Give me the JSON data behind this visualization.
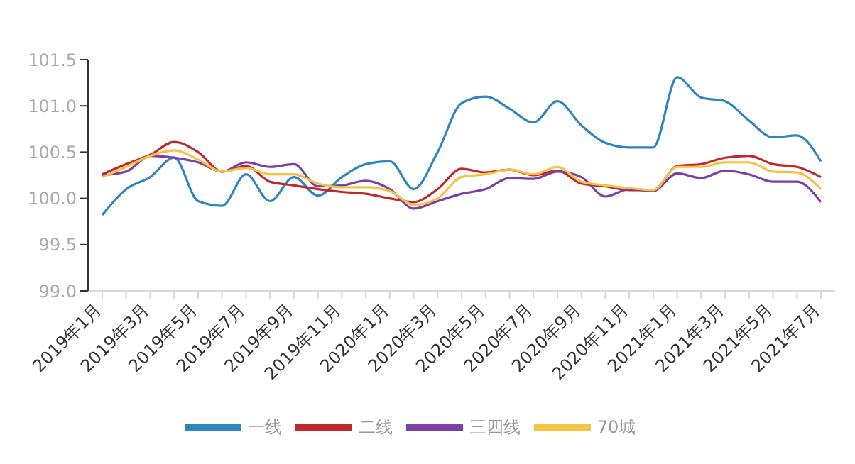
{
  "chart_data": {
    "type": "line",
    "categories": [
      "2019年1月",
      null,
      "2019年3月",
      null,
      "2019年5月",
      null,
      "2019年7月",
      null,
      "2019年9月",
      null,
      "2019年11月",
      null,
      "2020年1月",
      null,
      "2020年3月",
      null,
      "2020年5月",
      null,
      "2020年7月",
      null,
      "2020年9月",
      null,
      "2020年11月",
      null,
      "2021年1月",
      null,
      "2021年3月",
      null,
      "2021年5月",
      null,
      "2021年7月"
    ],
    "series": [
      {
        "name": "一线",
        "color": "#2e86c1",
        "values": [
          99.82,
          100.1,
          100.23,
          100.44,
          99.97,
          99.92,
          100.26,
          99.97,
          100.23,
          100.03,
          100.23,
          100.37,
          100.4,
          100.1,
          100.5,
          101.03,
          101.1,
          100.97,
          100.82,
          101.05,
          100.79,
          100.6,
          100.55,
          100.55,
          101.31,
          101.09,
          101.05,
          100.84,
          100.66,
          100.68,
          100.4
        ]
      },
      {
        "name": "二线",
        "color": "#c0282d",
        "values": [
          100.26,
          100.37,
          100.47,
          100.61,
          100.5,
          100.29,
          100.35,
          100.18,
          100.14,
          100.1,
          100.07,
          100.05,
          100.0,
          99.96,
          100.1,
          100.32,
          100.28,
          100.31,
          100.25,
          100.3,
          100.16,
          100.13,
          100.09,
          100.09,
          100.35,
          100.37,
          100.44,
          100.46,
          100.37,
          100.34,
          100.23
        ]
      },
      {
        "name": "三四线",
        "color": "#7b3fa6",
        "values": [
          100.25,
          100.29,
          100.46,
          100.44,
          100.39,
          100.29,
          100.39,
          100.34,
          100.37,
          100.13,
          100.14,
          100.19,
          100.1,
          99.89,
          99.97,
          100.05,
          100.1,
          100.22,
          100.21,
          100.29,
          100.23,
          100.02,
          100.1,
          100.08,
          100.27,
          100.22,
          100.3,
          100.26,
          100.18,
          100.18,
          99.96
        ]
      },
      {
        "name": "70城",
        "color": "#f5c242",
        "values": [
          100.23,
          100.34,
          100.46,
          100.52,
          100.42,
          100.29,
          100.33,
          100.26,
          100.26,
          100.16,
          100.12,
          100.12,
          100.08,
          99.93,
          100.0,
          100.23,
          100.26,
          100.31,
          100.26,
          100.34,
          100.18,
          100.14,
          100.11,
          100.09,
          100.34,
          100.34,
          100.39,
          100.39,
          100.29,
          100.28,
          100.1
        ]
      }
    ],
    "ylim": [
      99.0,
      101.5
    ],
    "yticks": [
      {
        "value": 99,
        "label": "99.0"
      },
      99.5,
      {
        "value": 100,
        "label": "100.0"
      },
      {
        "value": 100.5,
        "label": "100.5"
      },
      {
        "value": 101,
        "label": "101.0"
      },
      101.5
    ],
    "grid": false,
    "legend": "bottom",
    "marker": "none",
    "line_style": "solid"
  }
}
